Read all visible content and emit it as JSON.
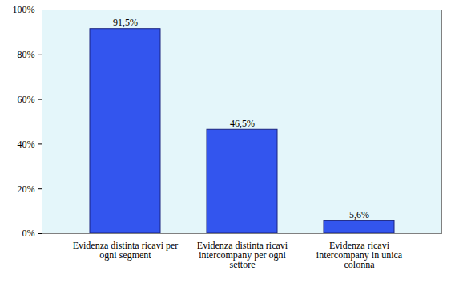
{
  "chart_data": {
    "type": "bar",
    "categories": [
      "Evidenza distinta ricavi per ogni segment",
      "Evidenza distinta ricavi intercompany per ogni settore",
      "Evidenza ricavi intercompany in unica colonna"
    ],
    "values": [
      91.5,
      46.5,
      5.6
    ],
    "value_labels": [
      "91,5%",
      "46,5%",
      "5,6%"
    ],
    "data_labels": true,
    "color": "#3355ee",
    "ylim": [
      0,
      100
    ],
    "yticks": [
      {
        "value": 0,
        "label": "0%"
      },
      {
        "value": 20,
        "label": "20%"
      },
      {
        "value": 40,
        "label": "40%"
      },
      {
        "value": 60,
        "label": "60%"
      },
      {
        "value": 80,
        "label": "80%"
      },
      {
        "value": 100,
        "label": "100%"
      }
    ],
    "grid": true
  }
}
